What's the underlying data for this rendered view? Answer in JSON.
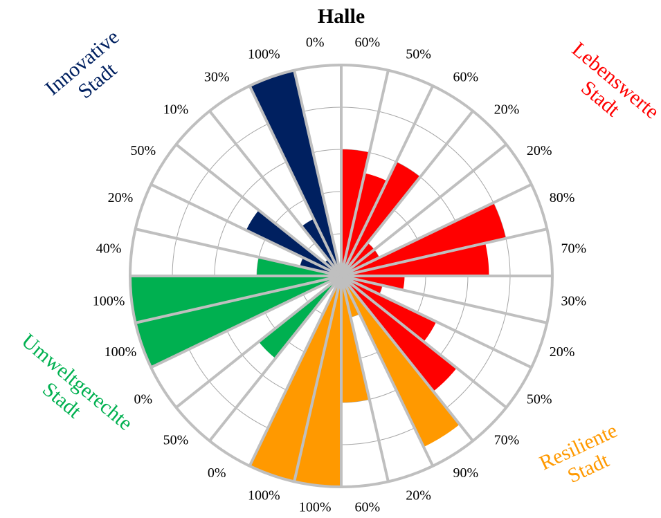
{
  "chart_data": {
    "type": "polar-bar",
    "title": "Halle",
    "rlim": [
      0,
      100
    ],
    "rticks": [
      20,
      40,
      60,
      80,
      100
    ],
    "grid": true,
    "series": [
      {
        "name": "Lebenswerte\nStadt",
        "color": "#ff0000",
        "values": [
          60,
          50,
          60,
          20,
          20,
          80,
          70,
          30,
          20,
          50,
          70
        ],
        "value_labels": [
          "60%",
          "50%",
          "60%",
          "20%",
          "20%",
          "80%",
          "70%",
          "30%",
          "20%",
          "50%",
          "70%"
        ]
      },
      {
        "name": "Resiliente\nStadt",
        "color": "#ff9900",
        "values": [
          90,
          20,
          60,
          100,
          100
        ],
        "value_labels": [
          "90%",
          "20%",
          "60%",
          "100%",
          "100%"
        ]
      },
      {
        "name": "Umweltgerechte\nStadt",
        "color": "#00b050",
        "values": [
          0,
          50,
          0,
          100,
          100,
          40
        ],
        "value_labels": [
          "0%",
          "50%",
          "0%",
          "100%",
          "100%",
          "40%"
        ]
      },
      {
        "name": "Innovative\nStadt",
        "color": "#002060",
        "values": [
          20,
          50,
          10,
          30,
          100,
          0
        ],
        "value_labels": [
          "20%",
          "50%",
          "10%",
          "30%",
          "100%",
          "0%"
        ]
      }
    ]
  }
}
